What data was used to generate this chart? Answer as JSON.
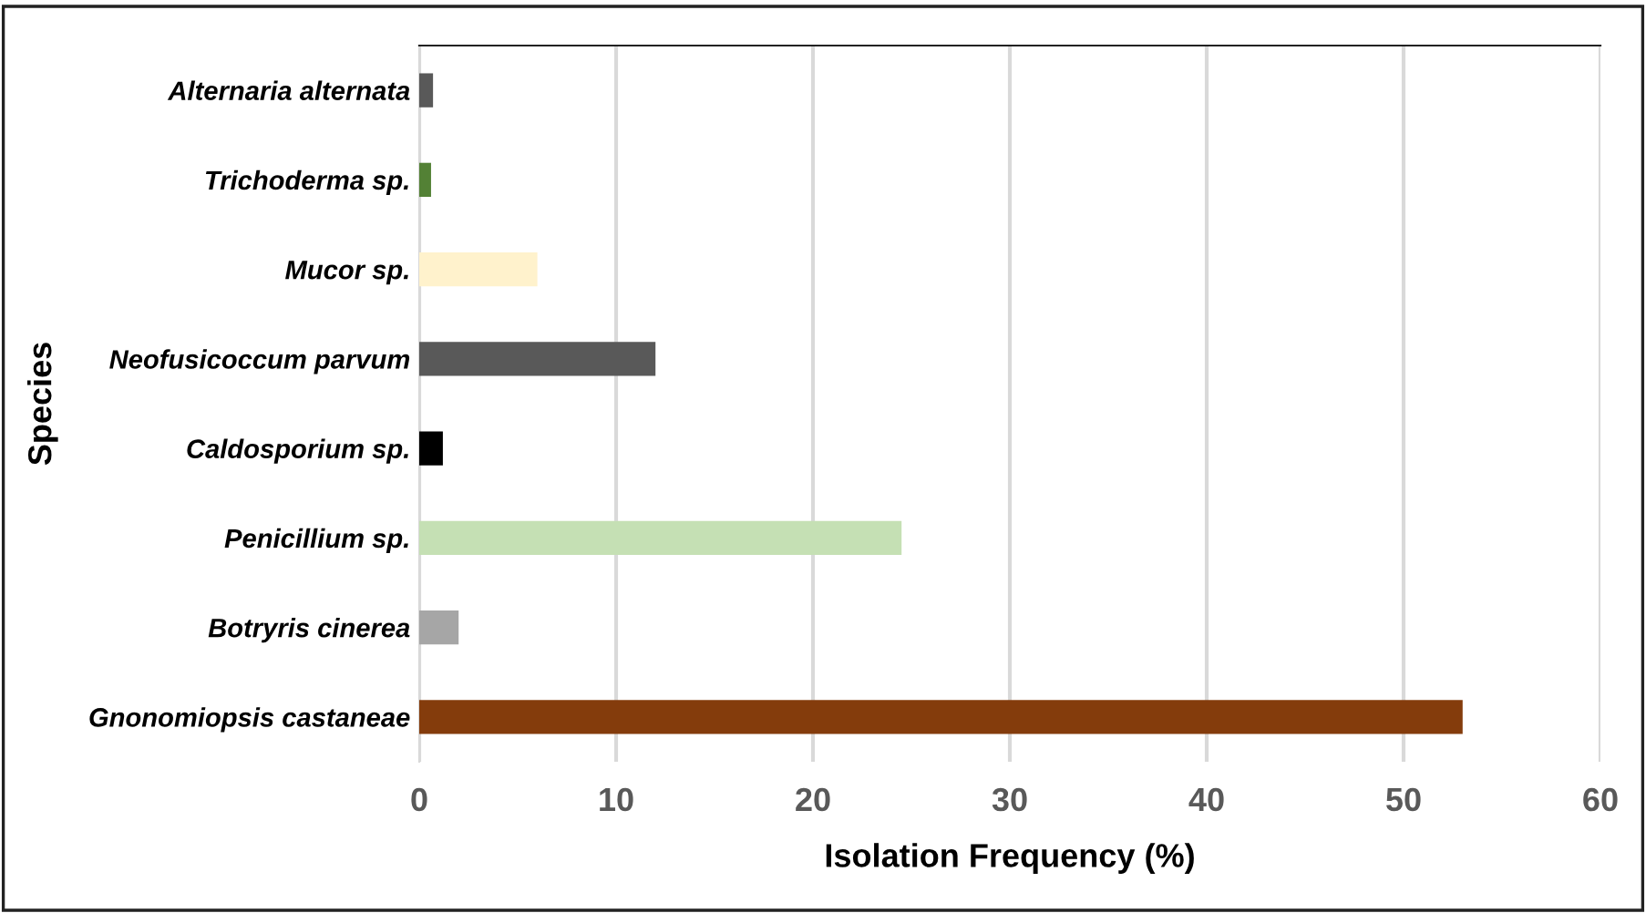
{
  "chart_data": {
    "type": "bar",
    "orientation": "horizontal",
    "xlabel": "Isolation Frequency (%)",
    "ylabel": "Species",
    "categories": [
      "Alternaria alternata",
      "Trichoderma sp.",
      "Mucor sp.",
      "Neofusicoccum parvum",
      "Caldosporium sp.",
      "Penicillium sp.",
      "Botryris cinerea",
      "Gnonomiopsis castaneae"
    ],
    "values": [
      0.7,
      0.6,
      6.0,
      12.0,
      1.2,
      24.5,
      2.0,
      53.0
    ],
    "colors": [
      "#595959",
      "#538135",
      "#fff2cc",
      "#595959",
      "#000000",
      "#c5e0b4",
      "#a6a6a6",
      "#843c0c"
    ],
    "xlim": [
      0,
      60
    ],
    "xticks": [
      0,
      10,
      20,
      30,
      40,
      50,
      60
    ],
    "grid": "x"
  }
}
